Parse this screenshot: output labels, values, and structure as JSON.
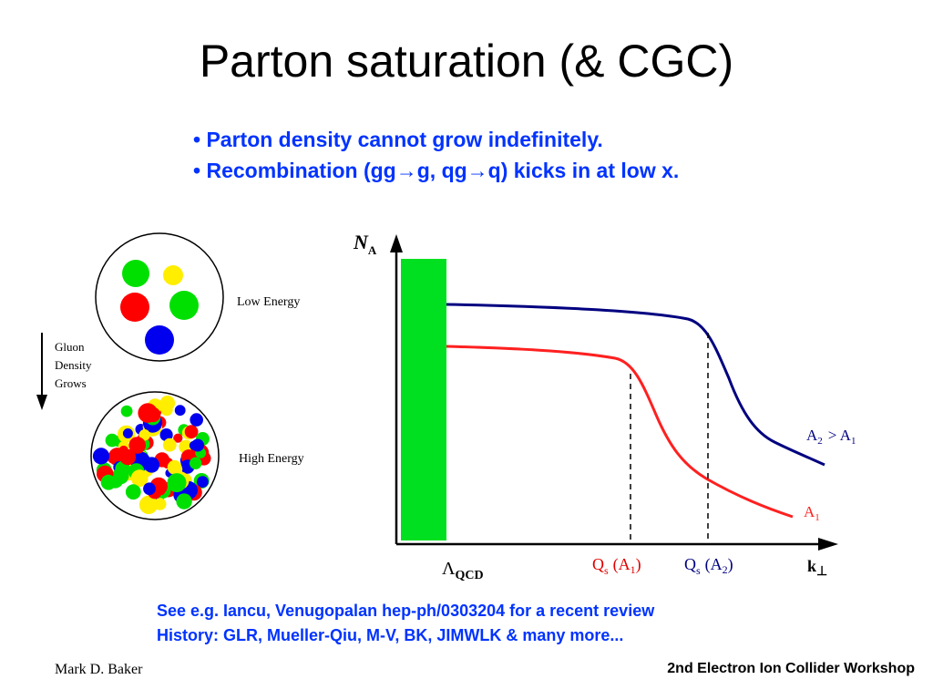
{
  "title": "Parton saturation (& CGC)",
  "bullets": [
    {
      "bullet": "•",
      "text": "Parton density cannot grow indefinitely."
    },
    {
      "bullet": "•",
      "pre": "Recombination (gg",
      "arrow": "→",
      "mid1": "g, qg",
      "arrow2": "→",
      "post": "q) kicks in at low x."
    }
  ],
  "left_diagram": {
    "low_energy_label": "Low Energy",
    "high_energy_label": "High Energy",
    "arrow_label": [
      "Gluon",
      "Density",
      "Grows"
    ]
  },
  "graph": {
    "y_label_main": "N",
    "y_label_sub": "A",
    "x_label_main": "k",
    "x_label_sub": "⊥",
    "lambda_main": "Λ",
    "lambda_sub": "QCD",
    "qs1": {
      "q": "Q",
      "s": "s",
      "arg": "(A",
      "argsub": "1",
      "close": ")"
    },
    "qs2": {
      "q": "Q",
      "s": "s",
      "arg": "(A",
      "argsub": "2",
      "close": ")"
    },
    "curve_a2": {
      "a": "A",
      "sub": "2",
      "rest": "> A",
      "sub2": "1"
    },
    "curve_a1": {
      "a": "A",
      "sub": "1"
    },
    "colors": {
      "a1": "#ff2020",
      "a2": "#000080",
      "qcd_bar": "#00e020",
      "qs_label": "#e00000"
    }
  },
  "refs": [
    "See e.g. Iancu, Venugopalan  hep-ph/0303204 for a recent review",
    "History: GLR, Mueller-Qiu, M-V, BK, JIMWLK & many more..."
  ],
  "footer": {
    "author": "Mark D. Baker",
    "workshop": "2nd Electron Ion Collider Workshop"
  }
}
